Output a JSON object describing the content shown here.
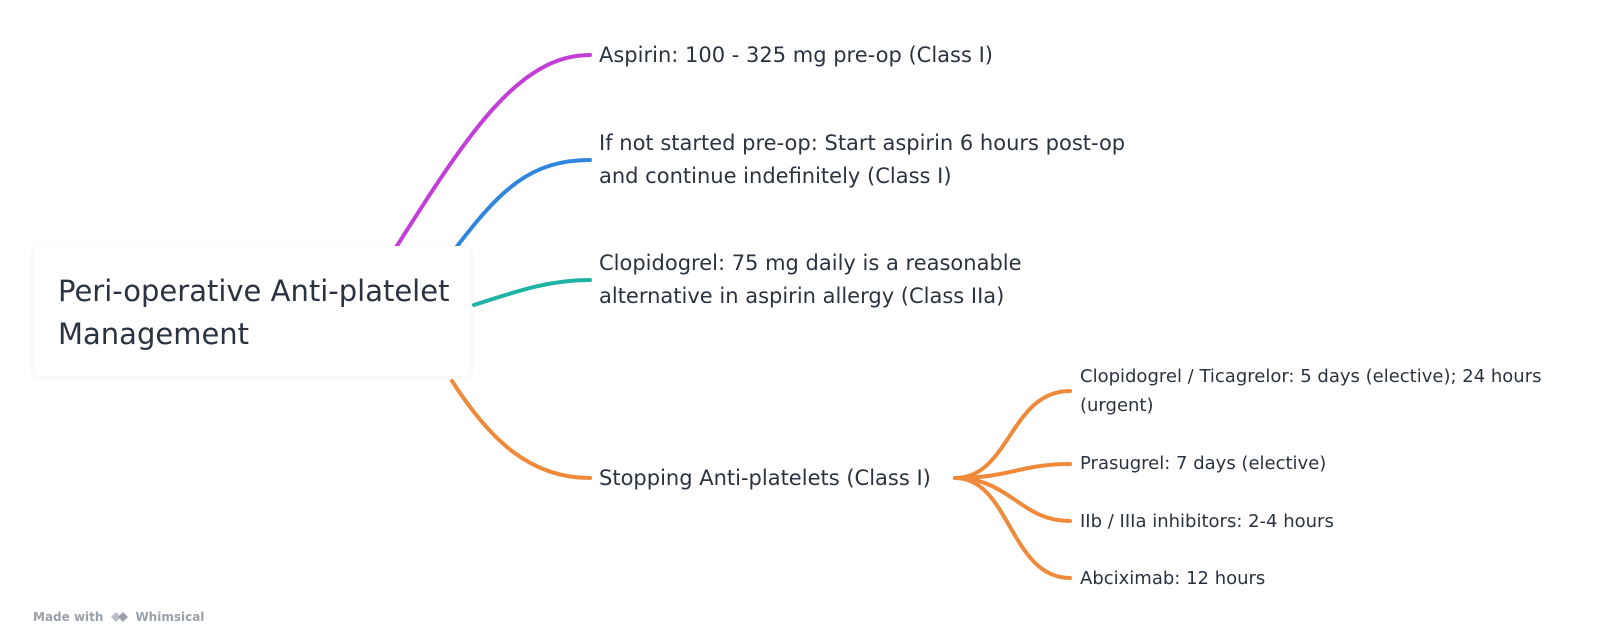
{
  "root": {
    "title": "Peri-operative Anti-platelet Management"
  },
  "branches": [
    {
      "text": "Aspirin: 100 - 325 mg pre-op (Class I)",
      "color": "#c33ed6"
    },
    {
      "text": "If not started pre-op: Start aspirin 6 hours post-op and continue indefinitely (Class I)",
      "color": "#2f86dc"
    },
    {
      "text": "Clopidogrel: 75 mg daily is a reasonable alternative in aspirin allergy (Class IIa)",
      "color": "#1fb3a4"
    },
    {
      "text": "Stopping Anti-platelets (Class I)",
      "color": "#ee8a3a",
      "children": [
        {
          "text": "Clopidogrel / Ticagrelor: 5 days (elective); 24 hours (urgent)"
        },
        {
          "text": "Prasugrel: 7 days (elective)"
        },
        {
          "text": "IIb / IIIa inhibitors: 2-4 hours"
        },
        {
          "text": "Abciximab: 12 hours"
        }
      ]
    }
  ],
  "footer": {
    "made_with": "Made with",
    "brand": "Whimsical"
  }
}
